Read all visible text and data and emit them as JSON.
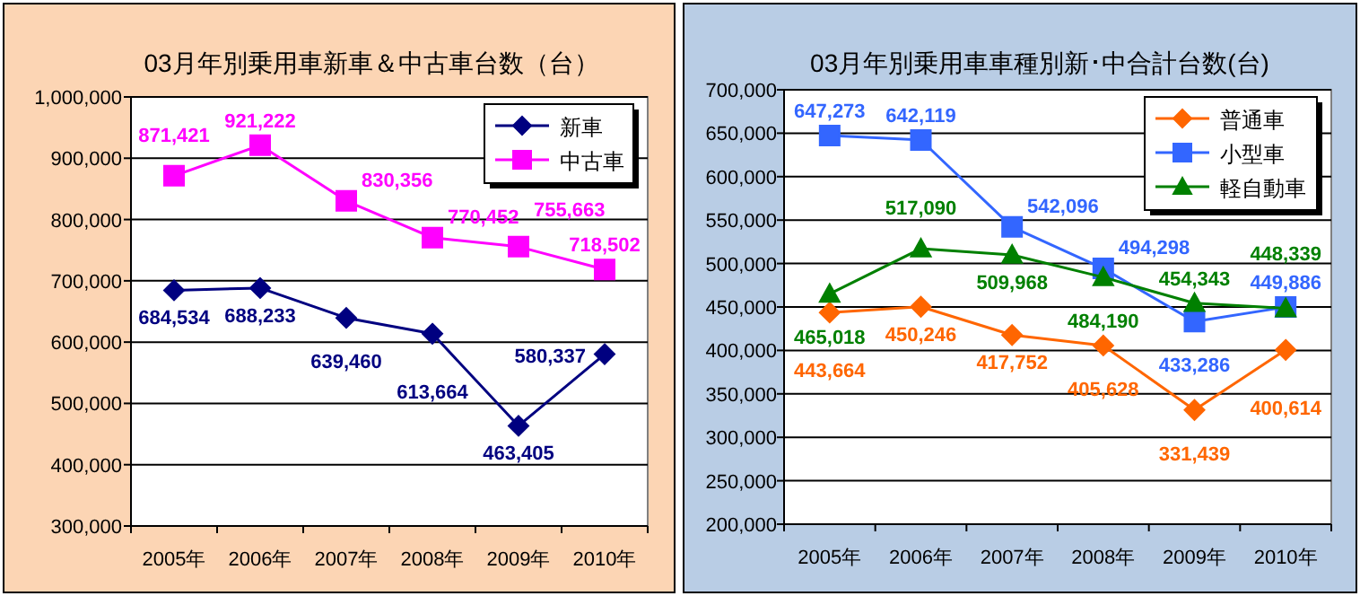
{
  "chart_data": [
    {
      "type": "line",
      "title": "03月年別乗用車新車＆中古車台数（台）",
      "categories": [
        "2005年",
        "2006年",
        "2007年",
        "2008年",
        "2009年",
        "2010年"
      ],
      "series": [
        {
          "name": "新車",
          "color": "#000080",
          "marker": "diamond",
          "values": [
            684534,
            688233,
            639460,
            613664,
            463405,
            580337
          ],
          "value_labels": [
            "684,534",
            "688,233",
            "639,460",
            "613,664",
            "463,405",
            "580,337"
          ]
        },
        {
          "name": "中古車",
          "color": "#ff00ff",
          "marker": "square",
          "values": [
            871421,
            921222,
            830356,
            770452,
            755663,
            718502
          ],
          "value_labels": [
            "871,421",
            "921,222",
            "830,356",
            "770,452",
            "755,663",
            "718,502"
          ]
        }
      ],
      "ylim": [
        300000,
        1000000
      ],
      "yticks": [
        {
          "value": 300000,
          "label": "300,000"
        },
        {
          "value": 400000,
          "label": "400,000"
        },
        {
          "value": 500000,
          "label": "500,000"
        },
        {
          "value": 600000,
          "label": "600,000"
        },
        {
          "value": 700000,
          "label": "700,000"
        },
        {
          "value": 800000,
          "label": "800,000"
        },
        {
          "value": 900000,
          "label": "900,000"
        },
        {
          "value": 1000000,
          "label": "1,000,000"
        }
      ],
      "grid": "y",
      "legend": "top right"
    },
    {
      "type": "line",
      "title": "03月年別乗用車車種別新･中合計台数(台)",
      "categories": [
        "2005年",
        "2006年",
        "2007年",
        "2008年",
        "2009年",
        "2010年"
      ],
      "series": [
        {
          "name": "普通車",
          "color": "#ff6600",
          "marker": "diamond",
          "values": [
            443664,
            450246,
            417752,
            405628,
            331439,
            400614
          ],
          "value_labels": [
            "443,664",
            "450,246",
            "417,752",
            "405,628",
            "331,439",
            "400,614"
          ]
        },
        {
          "name": "小型車",
          "color": "#3366ff",
          "marker": "square",
          "values": [
            647273,
            642119,
            542096,
            494298,
            433286,
            449886
          ],
          "value_labels": [
            "647,273",
            "642,119",
            "542,096",
            "494,298",
            "433,286",
            "449,886"
          ]
        },
        {
          "name": "軽自動車",
          "color": "#008000",
          "marker": "triangle",
          "values": [
            465018,
            517090,
            509968,
            484190,
            454343,
            448339
          ],
          "value_labels": [
            "465,018",
            "517,090",
            "509,968",
            "484,190",
            "454,343",
            "448,339"
          ]
        }
      ],
      "ylim": [
        200000,
        700000
      ],
      "yticks": [
        {
          "value": 200000,
          "label": "200,000"
        },
        {
          "value": 250000,
          "label": "250,000"
        },
        {
          "value": 300000,
          "label": "300,000"
        },
        {
          "value": 350000,
          "label": "350,000"
        },
        {
          "value": 400000,
          "label": "400,000"
        },
        {
          "value": 450000,
          "label": "450,000"
        },
        {
          "value": 500000,
          "label": "500,000"
        },
        {
          "value": 550000,
          "label": "550,000"
        },
        {
          "value": 600000,
          "label": "600,000"
        },
        {
          "value": 650000,
          "label": "650,000"
        },
        {
          "value": 700000,
          "label": "700,000"
        }
      ],
      "grid": "y",
      "legend": "top right"
    }
  ]
}
